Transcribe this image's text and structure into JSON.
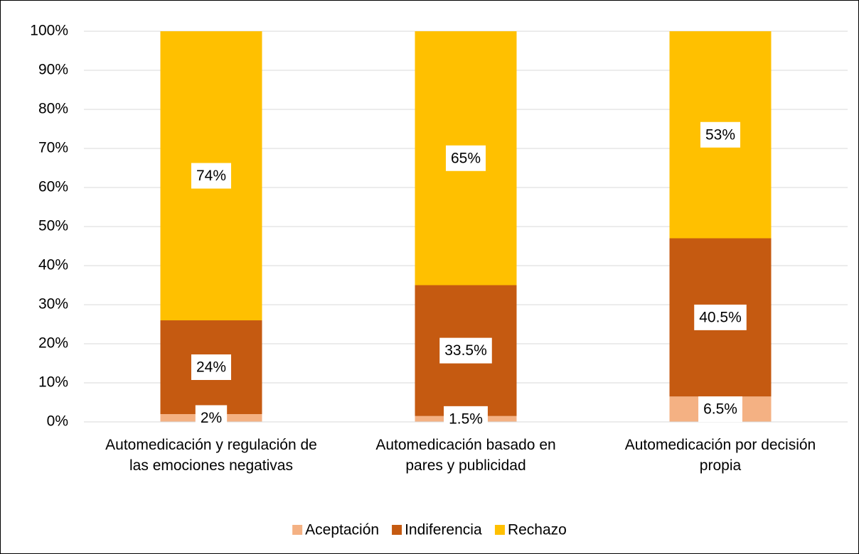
{
  "chart_data": {
    "type": "bar",
    "stacked": true,
    "categories": [
      "Automedicación y regulación de las emociones negativas",
      "Automedicación basado en pares y publicidad",
      "Automedicación por decisión propia"
    ],
    "series": [
      {
        "name": "Aceptación",
        "color": "#f4b183",
        "values": [
          2,
          1.5,
          6.5
        ],
        "value_labels": [
          "2%",
          "1.5%",
          "6.5%"
        ]
      },
      {
        "name": "Indiferencia",
        "color": "#c55a11",
        "values": [
          24,
          33.5,
          40.5
        ],
        "value_labels": [
          "24%",
          "33.5%",
          "40.5%"
        ]
      },
      {
        "name": "Rechazo",
        "color": "#ffc000",
        "values": [
          74,
          65,
          53
        ],
        "value_labels": [
          "74%",
          "65%",
          "53%"
        ]
      }
    ],
    "ylim": [
      0,
      100
    ],
    "yticks": [
      {
        "value": 0,
        "label": "0%"
      },
      {
        "value": 10,
        "label": "10%"
      },
      {
        "value": 20,
        "label": "20%"
      },
      {
        "value": 30,
        "label": "30%"
      },
      {
        "value": 40,
        "label": "40%"
      },
      {
        "value": 50,
        "label": "50%"
      },
      {
        "value": 60,
        "label": "60%"
      },
      {
        "value": 70,
        "label": "70%"
      },
      {
        "value": 80,
        "label": "80%"
      },
      {
        "value": 90,
        "label": "90%"
      },
      {
        "value": 100,
        "label": "100%"
      }
    ],
    "grid": true,
    "legend": "bottom"
  }
}
